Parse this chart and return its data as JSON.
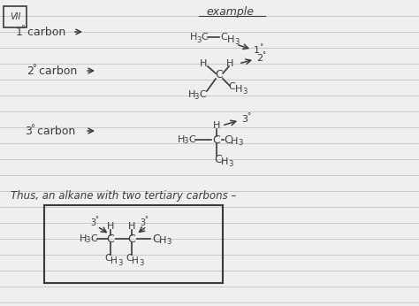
{
  "bg_color": "#efefef",
  "line_color": "#c8c8c8",
  "ink_color": "#3a3a3a",
  "title": "example",
  "conclusion": "Thus, an alkane with two tertiary carbons –",
  "roman": "VII"
}
